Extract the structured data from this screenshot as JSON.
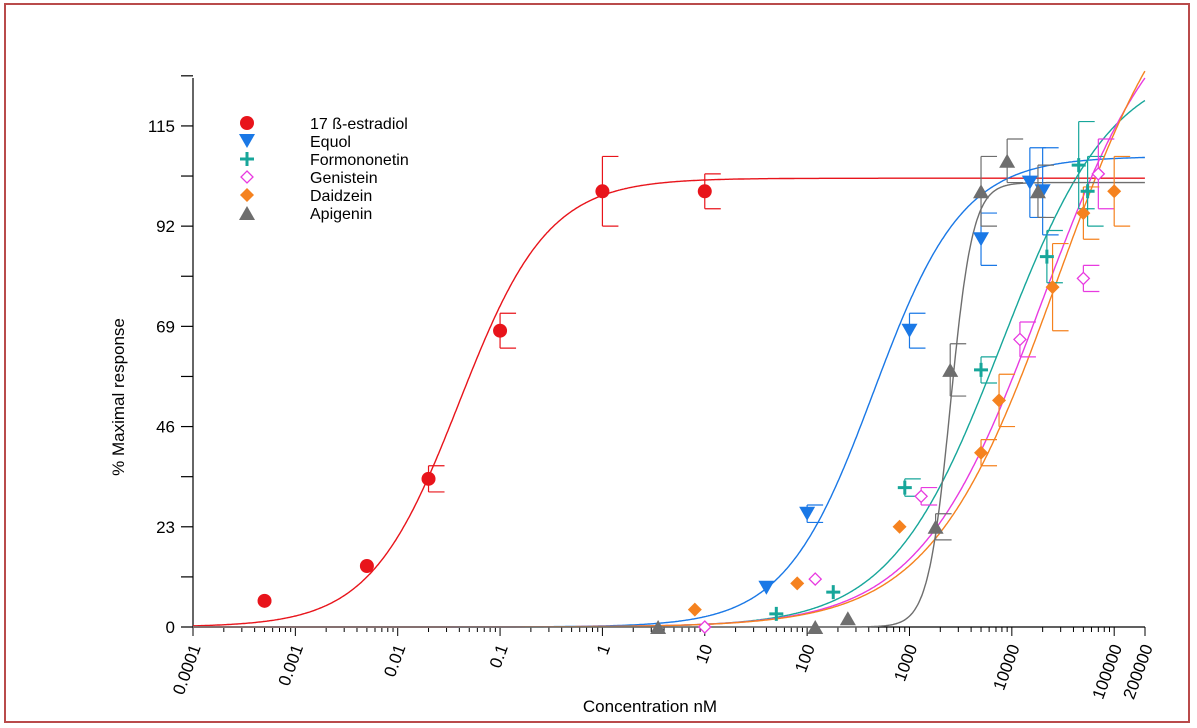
{
  "chart_data": {
    "type": "scatter",
    "title": "",
    "xlabel": "Concentration nM",
    "ylabel": "% Maximal response",
    "xscale": "log",
    "xlim": [
      0.0001,
      200000
    ],
    "ylim": [
      0,
      126
    ],
    "x_ticks": [
      0.0001,
      0.001,
      0.01,
      0.1,
      1,
      10,
      100,
      1000,
      10000,
      100000,
      200000
    ],
    "x_tick_labels": [
      "0.0001",
      "0.001",
      "0.01",
      "0.1",
      "1",
      "10",
      "100",
      "1000",
      "10000",
      "100000",
      "200000"
    ],
    "y_ticks": [
      0,
      23,
      46,
      69,
      92,
      115
    ],
    "y_tick_labels": [
      "0",
      "23",
      "46",
      "69",
      "92",
      "115"
    ],
    "legend_position": "top-left",
    "grid": false,
    "series": [
      {
        "name": "17 ß-estradiol",
        "color": "#e8141b",
        "marker": "circle",
        "x": [
          0.0005,
          0.005,
          0.02,
          0.1,
          1,
          10
        ],
        "y": [
          6,
          14,
          34,
          68,
          100,
          100
        ],
        "err": [
          0,
          0,
          3,
          4,
          8,
          4
        ],
        "fit": {
          "bottom": 0,
          "top": 103,
          "logec50": -1.4,
          "hill": 1
        }
      },
      {
        "name": "Equol",
        "color": "#1a78e6",
        "marker": "triangle-down",
        "x": [
          40,
          100,
          1000,
          5000,
          15000,
          20000
        ],
        "y": [
          9,
          26,
          68,
          89,
          102,
          100
        ],
        "err": [
          0,
          2,
          4,
          6,
          8,
          10
        ],
        "fit": {
          "bottom": 0,
          "top": 108,
          "logec50": 2.65,
          "hill": 1
        }
      },
      {
        "name": "Formononetin",
        "color": "#17a69a",
        "marker": "plus",
        "x": [
          50,
          180,
          900,
          5000,
          22000,
          45000,
          55000
        ],
        "y": [
          3,
          8,
          32,
          59,
          85,
          106,
          100
        ],
        "err": [
          0,
          0,
          2,
          3,
          6,
          10,
          8
        ],
        "fit": {
          "bottom": 0,
          "top": 130,
          "logec50": 3.9,
          "hill": 0.8
        }
      },
      {
        "name": "Genistein",
        "color": "#e83ae0",
        "marker": "diamond-open",
        "x": [
          10,
          120,
          1300,
          12000,
          50000,
          70000
        ],
        "y": [
          0,
          11,
          30,
          66,
          80,
          104
        ],
        "err": [
          0,
          0,
          2,
          4,
          3,
          8
        ],
        "fit": {
          "bottom": 0,
          "top": 150,
          "logec50": 4.3,
          "hill": 0.72
        }
      },
      {
        "name": "Daidzein",
        "color": "#f5821f",
        "marker": "diamond",
        "x": [
          8,
          80,
          800,
          5000,
          7500,
          25000,
          50000,
          100000
        ],
        "y": [
          4,
          10,
          23,
          40,
          52,
          78,
          95,
          100
        ],
        "err": [
          0,
          0,
          0,
          3,
          6,
          10,
          6,
          8
        ],
        "fit": {
          "bottom": 0,
          "top": 160,
          "logec50": 4.45,
          "hill": 0.7
        }
      },
      {
        "name": "Apigenin",
        "color": "#6e6e6e",
        "marker": "triangle-up",
        "x": [
          3.5,
          120,
          250,
          1800,
          2500,
          5000,
          9000,
          18000
        ],
        "y": [
          0,
          0,
          2,
          23,
          59,
          100,
          107,
          100
        ],
        "err": [
          0,
          0,
          0,
          3,
          6,
          8,
          5,
          6
        ],
        "fit": {
          "bottom": 0,
          "top": 102,
          "logec50": 3.4,
          "hill": 4
        }
      }
    ]
  }
}
